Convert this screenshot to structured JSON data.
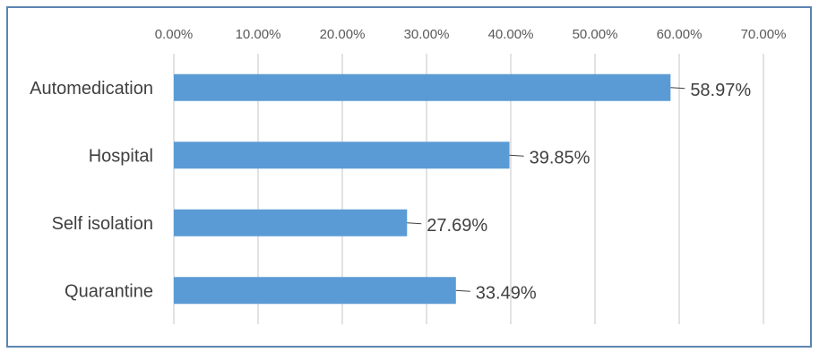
{
  "chart_data": {
    "type": "bar",
    "orientation": "horizontal",
    "categories": [
      "Automedication",
      "Hospital",
      "Self isolation",
      "Quarantine"
    ],
    "values": [
      58.97,
      39.85,
      27.69,
      33.49
    ],
    "value_labels": [
      "58.97%",
      "39.85%",
      "27.69%",
      "33.49%"
    ],
    "x_ticks": [
      "0.00%",
      "10.00%",
      "20.00%",
      "30.00%",
      "40.00%",
      "50.00%",
      "60.00%",
      "70.00%"
    ],
    "xlim": [
      0,
      70
    ],
    "x_axis_position": "top",
    "grid": true,
    "title": "",
    "xlabel": "",
    "ylabel": "",
    "colors": {
      "bar": "#5b9bd5",
      "grid": "#d9d9d9",
      "frame": "#5b84b1",
      "leader": "#404040"
    }
  }
}
